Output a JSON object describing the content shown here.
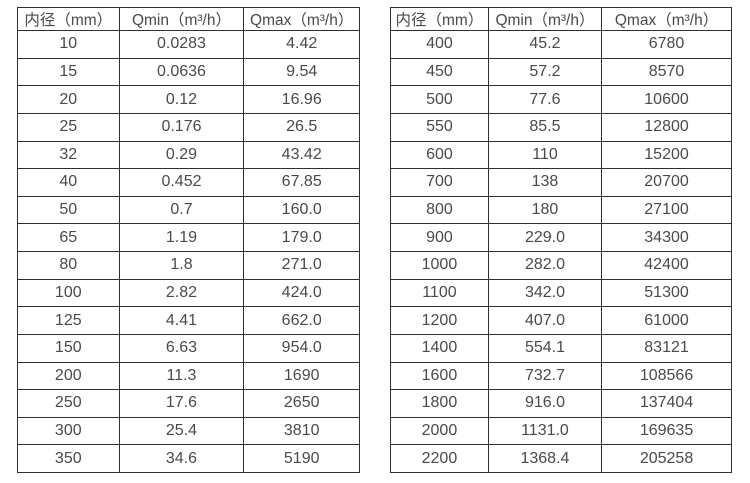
{
  "colors": {
    "background": "#ffffff",
    "border": "#2f2f2f",
    "text": "#4a4a4a"
  },
  "chart_data": [
    {
      "type": "table",
      "title": "",
      "columns": [
        "内径（mm）",
        "Qmin（m³/h）",
        "Qmax（m³/h）"
      ],
      "rows": [
        [
          "10",
          "0.0283",
          "4.42"
        ],
        [
          "15",
          "0.0636",
          "9.54"
        ],
        [
          "20",
          "0.12",
          "16.96"
        ],
        [
          "25",
          "0.176",
          "26.5"
        ],
        [
          "32",
          "0.29",
          "43.42"
        ],
        [
          "40",
          "0.452",
          "67.85"
        ],
        [
          "50",
          "0.7",
          "160.0"
        ],
        [
          "65",
          "1.19",
          "179.0"
        ],
        [
          "80",
          "1.8",
          "271.0"
        ],
        [
          "100",
          "2.82",
          "424.0"
        ],
        [
          "125",
          "4.41",
          "662.0"
        ],
        [
          "150",
          "6.63",
          "954.0"
        ],
        [
          "200",
          "11.3",
          "1690"
        ],
        [
          "250",
          "17.6",
          "2650"
        ],
        [
          "300",
          "25.4",
          "3810"
        ],
        [
          "350",
          "34.6",
          "5190"
        ]
      ]
    },
    {
      "type": "table",
      "title": "",
      "columns": [
        "内径（mm）",
        "Qmin（m³/h）",
        "Qmax（m³/h）"
      ],
      "rows": [
        [
          "400",
          "45.2",
          "6780"
        ],
        [
          "450",
          "57.2",
          "8570"
        ],
        [
          "500",
          "77.6",
          "10600"
        ],
        [
          "550",
          "85.5",
          "12800"
        ],
        [
          "600",
          "110",
          "15200"
        ],
        [
          "700",
          "138",
          "20700"
        ],
        [
          "800",
          "180",
          "27100"
        ],
        [
          "900",
          "229.0",
          "34300"
        ],
        [
          "1000",
          "282.0",
          "42400"
        ],
        [
          "1100",
          "342.0",
          "51300"
        ],
        [
          "1200",
          "407.0",
          "61000"
        ],
        [
          "1400",
          "554.1",
          "83121"
        ],
        [
          "1600",
          "732.7",
          "108566"
        ],
        [
          "1800",
          "916.0",
          "137404"
        ],
        [
          "2000",
          "1131.0",
          "169635"
        ],
        [
          "2200",
          "1368.4",
          "205258"
        ]
      ]
    }
  ]
}
